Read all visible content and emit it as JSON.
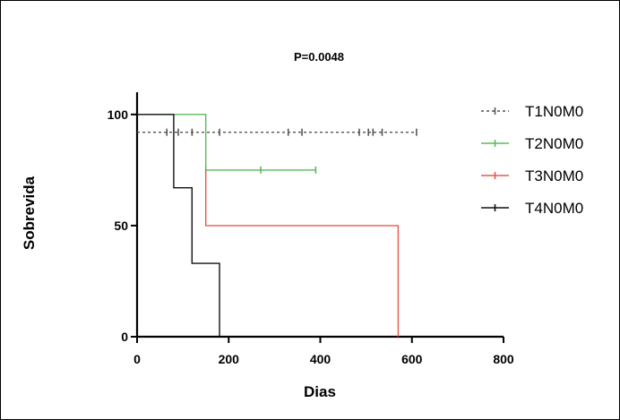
{
  "chart_data": {
    "type": "line",
    "title": "P=0.0048",
    "xlabel": "Dias",
    "ylabel": "Sobrevida",
    "xlim": [
      0,
      800
    ],
    "ylim": [
      0,
      110
    ],
    "x_ticks": [
      0,
      200,
      400,
      600,
      800
    ],
    "x_tick_labels": [
      "0",
      "200",
      "400",
      "600",
      "800"
    ],
    "y_ticks": [
      0,
      50,
      100
    ],
    "y_tick_labels": [
      "0",
      "50",
      "100"
    ],
    "grid": false,
    "legend_position": "right",
    "series": [
      {
        "name": "T1N0M0",
        "color": "#555555",
        "style": "dashed",
        "steps": [
          [
            0,
            92
          ],
          [
            610,
            92
          ]
        ],
        "censored": [
          [
            65,
            92
          ],
          [
            90,
            92
          ],
          [
            120,
            92
          ],
          [
            180,
            92
          ],
          [
            330,
            92
          ],
          [
            360,
            92
          ],
          [
            485,
            92
          ],
          [
            505,
            92
          ],
          [
            515,
            92
          ],
          [
            535,
            92
          ],
          [
            610,
            92
          ]
        ]
      },
      {
        "name": "T2N0M0",
        "color": "#5cb85c",
        "style": "solid",
        "steps": [
          [
            0,
            100
          ],
          [
            150,
            100
          ],
          [
            150,
            75
          ],
          [
            390,
            75
          ]
        ],
        "censored": [
          [
            150,
            75
          ],
          [
            270,
            75
          ],
          [
            390,
            75
          ]
        ]
      },
      {
        "name": "T3N0M0",
        "color": "#e8584e",
        "style": "solid",
        "steps": [
          [
            150,
            75
          ],
          [
            150,
            50
          ],
          [
            570,
            50
          ],
          [
            570,
            0
          ]
        ],
        "censored": []
      },
      {
        "name": "T4N0M0",
        "color": "#111111",
        "style": "solid",
        "steps": [
          [
            0,
            100
          ],
          [
            80,
            100
          ],
          [
            80,
            67
          ],
          [
            120,
            67
          ],
          [
            120,
            33
          ],
          [
            180,
            33
          ],
          [
            180,
            0
          ]
        ],
        "censored": []
      }
    ]
  }
}
